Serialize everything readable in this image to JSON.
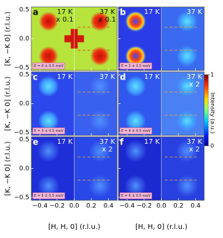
{
  "chart_data": {
    "type": "heatmap",
    "x_label": "[H, H, 0] (r.l.u.)",
    "y_label": "[K, −K 0] (r.l.u.)",
    "xlim": [
      -0.5,
      0.5
    ],
    "ylim": [
      -0.55,
      0.55
    ],
    "xticks": [
      {
        "value": -0.4,
        "label": "−0.4"
      },
      {
        "value": -0.2,
        "label": "−0.2"
      },
      {
        "value": 0,
        "label": "0.0"
      },
      0.2,
      0.4
    ],
    "yticks": [
      0.5,
      {
        "value": 0,
        "label": "0.0"
      },
      {
        "value": -0.5,
        "label": "−0.5"
      }
    ],
    "colorbar": {
      "label": "Intensity (a.u.)",
      "clim": [
        0,
        1
      ],
      "ticks": [
        0,
        1
      ]
    },
    "panels": [
      {
        "letter": "a",
        "left_temp": "17 K",
        "left_scale": "x 0.1",
        "right_temp": "37 K",
        "right_scale": "x 0.1",
        "energy": "E = 0 ± 0.5 meV"
      },
      {
        "letter": "b",
        "left_temp": "17 K",
        "right_temp": "37 K",
        "energy": "E = 2 ± 0.5 meV"
      },
      {
        "letter": "c",
        "left_temp": "17 K",
        "right_temp": "37 K",
        "energy": "E = 3 ± 0.5 meV"
      },
      {
        "letter": "d",
        "left_temp": "17 K",
        "right_temp": "37 K",
        "right_scale": "x 2",
        "energy": "E = 4 ± 0.5 meV"
      },
      {
        "letter": "e",
        "left_temp": "17 K",
        "right_temp": "37 K",
        "right_scale": "x 2",
        "energy": "E = 5 ± 0.5 meV"
      },
      {
        "letter": "f",
        "left_temp": "17 K",
        "right_temp": "37 K",
        "right_scale": "x 2",
        "energy": "E = 6 ± 0.5 meV"
      }
    ]
  }
}
